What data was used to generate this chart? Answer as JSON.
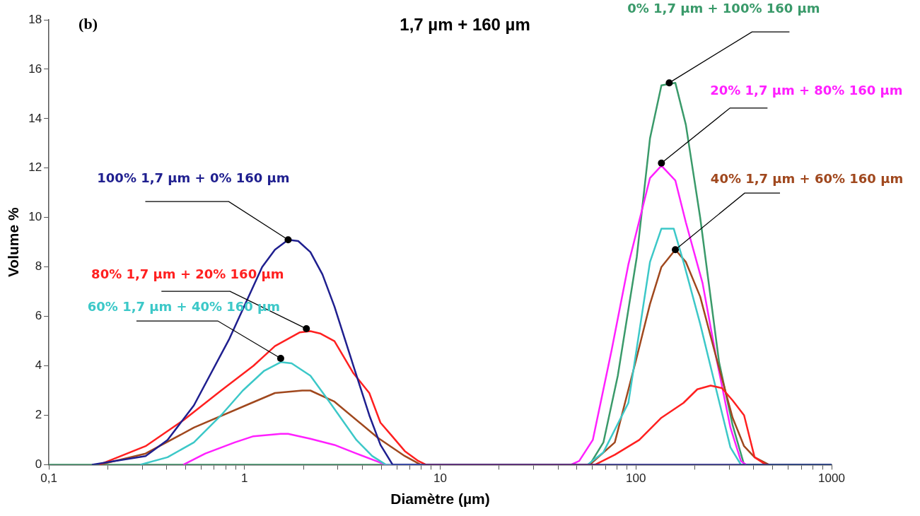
{
  "chart_data": {
    "type": "line",
    "title": "1,7 µm + 160 µm",
    "xlabel": "Diamètre (µm)",
    "ylabel": "Volume %",
    "log": "x",
    "grid": false,
    "legend": false,
    "marker": "none",
    "line_style": "solid",
    "xlim": [
      0.1,
      1000
    ],
    "xticks": [
      {
        "value": 0.1,
        "label": "0,1"
      },
      {
        "value": 0.2,
        "label": null
      },
      {
        "value": 0.3,
        "label": null
      },
      {
        "value": 0.4,
        "label": null
      },
      {
        "value": 0.5,
        "label": null
      },
      {
        "value": 0.6,
        "label": null
      },
      {
        "value": 0.7,
        "label": null
      },
      {
        "value": 0.8,
        "label": null
      },
      {
        "value": 0.9,
        "label": null
      },
      1,
      {
        "value": 2,
        "label": null
      },
      {
        "value": 3,
        "label": null
      },
      {
        "value": 4,
        "label": null
      },
      {
        "value": 5,
        "label": null
      },
      {
        "value": 6,
        "label": null
      },
      {
        "value": 7,
        "label": null
      },
      {
        "value": 8,
        "label": null
      },
      {
        "value": 9,
        "label": null
      },
      10,
      {
        "value": 20,
        "label": null
      },
      {
        "value": 30,
        "label": null
      },
      {
        "value": 40,
        "label": null
      },
      {
        "value": 50,
        "label": null
      },
      {
        "value": 60,
        "label": null
      },
      {
        "value": 70,
        "label": null
      },
      {
        "value": 80,
        "label": null
      },
      {
        "value": 90,
        "label": null
      },
      100,
      {
        "value": 200,
        "label": null
      },
      {
        "value": 300,
        "label": null
      },
      {
        "value": 400,
        "label": null
      },
      {
        "value": 500,
        "label": null
      },
      {
        "value": 600,
        "label": null
      },
      {
        "value": 700,
        "label": null
      },
      {
        "value": 800,
        "label": null
      },
      {
        "value": 900,
        "label": null
      },
      1000
    ],
    "ylim": [
      0,
      18
    ],
    "yticks": [
      0,
      2,
      4,
      6,
      8,
      10,
      12,
      14,
      16,
      18
    ],
    "series": [
      {
        "color": "#1f1f8f",
        "x": [
          0.166,
          0.312,
          0.404,
          0.551,
          0.837,
          1.23,
          1.43,
          1.67,
          1.88,
          2.17,
          2.5,
          2.88,
          3.6,
          4.34,
          4.95,
          5.71,
          1000
        ],
        "values": [
          0,
          0.35,
          1.0,
          2.4,
          5.1,
          8.0,
          8.7,
          9.1,
          9.05,
          8.6,
          7.7,
          6.4,
          4.0,
          2.0,
          0.8,
          0,
          0
        ]
      },
      {
        "color": "#ff2020",
        "x": [
          0.181,
          0.312,
          0.487,
          0.759,
          1.11,
          1.43,
          1.91,
          2.17,
          2.45,
          2.88,
          3.6,
          4.34,
          4.95,
          5.61,
          6.59,
          7.73,
          8.45,
          56.6,
          61.9,
          78,
          104,
          135,
          175,
          206,
          241,
          275,
          312,
          357,
          404,
          461
        ],
        "values": [
          0,
          0.75,
          1.8,
          3.0,
          4.0,
          4.8,
          5.35,
          5.4,
          5.3,
          5.0,
          3.7,
          2.9,
          1.7,
          1.2,
          0.55,
          0.15,
          0,
          0,
          0,
          0.4,
          1.0,
          1.9,
          2.5,
          3.05,
          3.2,
          3.1,
          2.6,
          2.0,
          0.3,
          0
        ]
      },
      {
        "color": "#3cc8c8",
        "x": [
          0.293,
          0.404,
          0.551,
          0.759,
          0.98,
          1.26,
          1.53,
          1.74,
          2.17,
          2.71,
          3.73,
          4.49,
          5.27,
          56.6,
          68.2,
          91.5,
          118,
          135,
          156,
          175,
          213,
          257,
          304,
          344
        ],
        "values": [
          0,
          0.3,
          0.9,
          2.0,
          3.0,
          3.8,
          4.15,
          4.1,
          3.6,
          2.55,
          1.0,
          0.35,
          0,
          0,
          0.5,
          2.5,
          8.2,
          9.55,
          9.55,
          8.2,
          5.7,
          3.05,
          0.7,
          0
        ]
      },
      {
        "color": "#a0481e",
        "x": [
          0.181,
          0.312,
          0.551,
          1.05,
          1.43,
          1.97,
          2.17,
          2.88,
          4.78,
          6.59,
          7.94,
          58.1,
          78,
          101,
          118,
          135,
          159,
          180,
          213,
          257,
          312,
          357,
          404,
          478
        ],
        "values": [
          0,
          0.45,
          1.5,
          2.45,
          2.9,
          3.0,
          3.0,
          2.55,
          1.1,
          0.35,
          0,
          0,
          0.9,
          4.35,
          6.5,
          8.0,
          8.7,
          8.2,
          6.8,
          4.35,
          1.9,
          0.75,
          0.3,
          0
        ]
      },
      {
        "color": "#ff20ff",
        "x": [
          0.487,
          0.63,
          0.891,
          1.11,
          1.53,
          1.67,
          2.17,
          2.88,
          3.73,
          5.27,
          46.6,
          51.3,
          60.2,
          75.2,
          91.5,
          118,
          135,
          159,
          180,
          219,
          257,
          304,
          344,
          366
        ],
        "values": [
          0,
          0.45,
          0.9,
          1.15,
          1.25,
          1.25,
          1.05,
          0.8,
          0.45,
          0,
          0,
          0.15,
          1.0,
          4.65,
          8.1,
          11.6,
          12.1,
          11.5,
          9.8,
          7.35,
          4.35,
          1.5,
          0.15,
          0
        ]
      },
      {
        "color": "#3a9a6a",
        "x": [
          0.1,
          58.1,
          68.2,
          80.8,
          101,
          118,
          135,
          159,
          180,
          213,
          266,
          312,
          357,
          1000
        ],
        "values": [
          0,
          0,
          0.9,
          3.6,
          8.4,
          13.2,
          15.35,
          15.45,
          13.75,
          10.0,
          4.15,
          1.6,
          0,
          0
        ]
      }
    ],
    "annotations": [
      {
        "text": "100% 1,7 µm + 0% 160 µm",
        "x": 1.67,
        "y": 9.1
      },
      {
        "text": "80% 1,7 µm + 20% 160 µm",
        "x": 2.07,
        "y": 5.5
      },
      {
        "text": "60% 1,7 µm + 40% 160 µm",
        "x": 1.53,
        "y": 4.3
      },
      {
        "text": "40% 1,7 µm + 60% 160 µm",
        "x": 159,
        "y": 8.7
      },
      {
        "text": "20% 1,7 µm + 80% 160 µm",
        "x": 135,
        "y": 12.2
      },
      {
        "text": "0% 1,7 µm + 100% 160 µm",
        "x": 148,
        "y": 15.45
      },
      "(b)"
    ]
  }
}
